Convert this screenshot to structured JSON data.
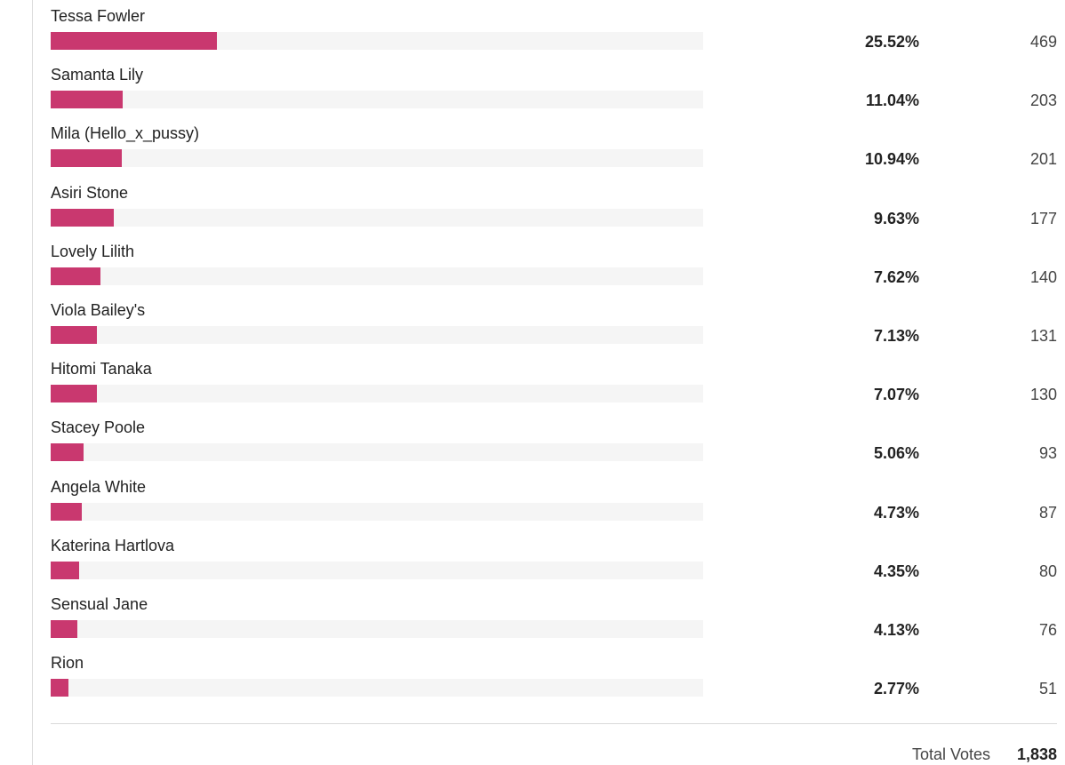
{
  "poll": {
    "bar_color": "#c9386f",
    "track_color": "#f5f5f5",
    "options": [
      {
        "name": "Tessa Fowler",
        "percent_label": "25.52%",
        "percent": 25.52,
        "votes": "469"
      },
      {
        "name": "Samanta Lily",
        "percent_label": "11.04%",
        "percent": 11.04,
        "votes": "203"
      },
      {
        "name": "Mila (Hello_x_pussy)",
        "percent_label": "10.94%",
        "percent": 10.94,
        "votes": "201"
      },
      {
        "name": "Asiri Stone",
        "percent_label": "9.63%",
        "percent": 9.63,
        "votes": "177"
      },
      {
        "name": "Lovely Lilith",
        "percent_label": "7.62%",
        "percent": 7.62,
        "votes": "140"
      },
      {
        "name": "Viola Bailey's",
        "percent_label": "7.13%",
        "percent": 7.13,
        "votes": "131"
      },
      {
        "name": "Hitomi Tanaka",
        "percent_label": "7.07%",
        "percent": 7.07,
        "votes": "130"
      },
      {
        "name": "Stacey Poole",
        "percent_label": "5.06%",
        "percent": 5.06,
        "votes": "93"
      },
      {
        "name": "Angela White",
        "percent_label": "4.73%",
        "percent": 4.73,
        "votes": "87"
      },
      {
        "name": "Katerina Hartlova",
        "percent_label": "4.35%",
        "percent": 4.35,
        "votes": "80"
      },
      {
        "name": "Sensual Jane",
        "percent_label": "4.13%",
        "percent": 4.13,
        "votes": "76"
      },
      {
        "name": "Rion",
        "percent_label": "2.77%",
        "percent": 2.77,
        "votes": "51"
      }
    ],
    "total_label": "Total Votes",
    "total_votes": "1,838"
  }
}
